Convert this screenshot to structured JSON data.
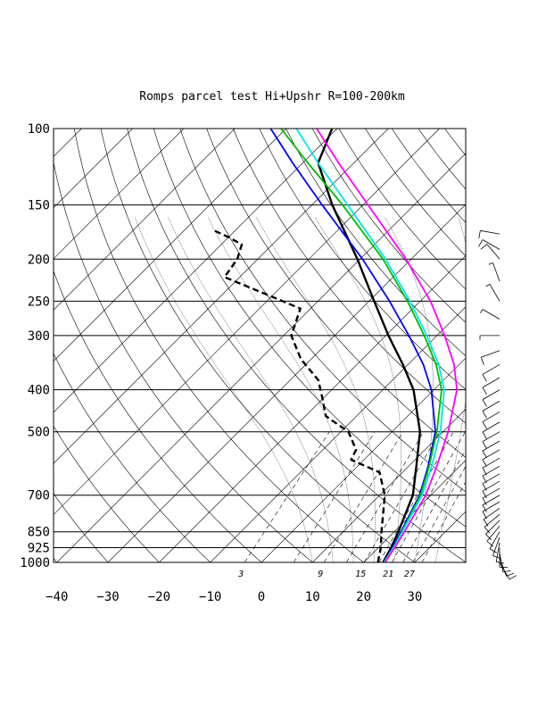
{
  "chart_data": {
    "type": "line",
    "chart_kind": "skew-T log-P diagram",
    "title": "Romps parcel test Hi+Upshr R=100-200km",
    "y_scale": "log",
    "ylim": [
      1000,
      100
    ],
    "xlim": [
      -40,
      40
    ],
    "grid": true,
    "pressure_ticks": [
      {
        "value": 100,
        "label": "100"
      },
      {
        "value": 150,
        "label": "150"
      },
      {
        "value": 200,
        "label": "200"
      },
      {
        "value": 250,
        "label": "250"
      },
      {
        "value": 300,
        "label": "300"
      },
      {
        "value": 400,
        "label": "400"
      },
      {
        "value": 500,
        "label": "500"
      },
      {
        "value": 700,
        "label": "700"
      },
      {
        "value": 850,
        "label": "850"
      },
      {
        "value": 925,
        "label": "925"
      },
      {
        "value": 1000,
        "label": "1000"
      }
    ],
    "temperature_ticks": [
      {
        "value": -40,
        "label": "−40"
      },
      {
        "value": -30,
        "label": "−30"
      },
      {
        "value": -20,
        "label": "−20"
      },
      {
        "value": -10,
        "label": "−10"
      },
      {
        "value": 0,
        "label": "0"
      },
      {
        "value": 10,
        "label": "10"
      },
      {
        "value": 20,
        "label": "20"
      },
      {
        "value": 30,
        "label": "30"
      }
    ],
    "mixing_ratio_labels": [
      {
        "value": 3,
        "label": "3"
      },
      {
        "value": 9,
        "label": "9"
      },
      {
        "value": 15,
        "label": "15"
      },
      {
        "value": 21,
        "label": "21"
      },
      {
        "value": 27,
        "label": "27"
      }
    ],
    "series": [
      {
        "kind": "environment temperature",
        "color": "#000000",
        "style": "solid",
        "points": [
          {
            "p": 1000,
            "t": 23.8
          },
          {
            "p": 925,
            "t": 22.5
          },
          {
            "p": 850,
            "t": 20.8
          },
          {
            "p": 700,
            "t": 16.5
          },
          {
            "p": 600,
            "t": 11.5
          },
          {
            "p": 500,
            "t": 5.5
          },
          {
            "p": 400,
            "t": -4.0
          },
          {
            "p": 350,
            "t": -11.0
          },
          {
            "p": 300,
            "t": -19.5
          },
          {
            "p": 250,
            "t": -29.0
          },
          {
            "p": 200,
            "t": -40.5
          },
          {
            "p": 150,
            "t": -56.0
          },
          {
            "p": 120,
            "t": -67.0
          },
          {
            "p": 100,
            "t": -71.0
          }
        ]
      },
      {
        "kind": "environment dewpoint",
        "color": "#000000",
        "style": "dashed",
        "points": [
          {
            "p": 1000,
            "t": 22.8
          },
          {
            "p": 925,
            "t": 20.5
          },
          {
            "p": 850,
            "t": 17.5
          },
          {
            "p": 700,
            "t": 11.0
          },
          {
            "p": 620,
            "t": 5.5
          },
          {
            "p": 580,
            "t": -2.5
          },
          {
            "p": 550,
            "t": -3.5
          },
          {
            "p": 500,
            "t": -8.5
          },
          {
            "p": 460,
            "t": -16.0
          },
          {
            "p": 420,
            "t": -20.0
          },
          {
            "p": 380,
            "t": -24.5
          },
          {
            "p": 340,
            "t": -32.0
          },
          {
            "p": 300,
            "t": -38.5
          },
          {
            "p": 260,
            "t": -42.0
          },
          {
            "p": 240,
            "t": -52.0
          },
          {
            "p": 220,
            "t": -63.0
          },
          {
            "p": 200,
            "t": -64.0
          },
          {
            "p": 185,
            "t": -66.0
          },
          {
            "p": 178,
            "t": -70.0
          },
          {
            "p": 172,
            "t": -74.0
          }
        ]
      },
      {
        "kind": "parcel",
        "color": "#0000ff",
        "style": "solid",
        "points": [
          {
            "p": 1000,
            "t": 24.0
          },
          {
            "p": 925,
            "t": 22.8
          },
          {
            "p": 850,
            "t": 21.3
          },
          {
            "p": 700,
            "t": 17.8
          },
          {
            "p": 600,
            "t": 13.8
          },
          {
            "p": 500,
            "t": 8.5
          },
          {
            "p": 400,
            "t": -0.5
          },
          {
            "p": 350,
            "t": -7.0
          },
          {
            "p": 300,
            "t": -15.5
          },
          {
            "p": 250,
            "t": -26.0
          },
          {
            "p": 200,
            "t": -39.5
          },
          {
            "p": 150,
            "t": -58.0
          },
          {
            "p": 120,
            "t": -72.0
          },
          {
            "p": 100,
            "t": -83.0
          }
        ]
      },
      {
        "kind": "parcel",
        "color": "#00bb00",
        "style": "solid",
        "points": [
          {
            "p": 1000,
            "t": 24.0
          },
          {
            "p": 925,
            "t": 23.0
          },
          {
            "p": 850,
            "t": 21.5
          },
          {
            "p": 700,
            "t": 18.0
          },
          {
            "p": 600,
            "t": 14.0
          },
          {
            "p": 500,
            "t": 8.8
          },
          {
            "p": 400,
            "t": 1.5
          },
          {
            "p": 350,
            "t": -4.5
          },
          {
            "p": 300,
            "t": -12.5
          },
          {
            "p": 250,
            "t": -22.5
          },
          {
            "p": 200,
            "t": -35.5
          },
          {
            "p": 150,
            "t": -54.0
          },
          {
            "p": 120,
            "t": -69.0
          },
          {
            "p": 100,
            "t": -81.0
          }
        ]
      },
      {
        "kind": "parcel",
        "color": "#00e5e5",
        "style": "solid",
        "points": [
          {
            "p": 1000,
            "t": 24.0
          },
          {
            "p": 925,
            "t": 23.0
          },
          {
            "p": 850,
            "t": 21.6
          },
          {
            "p": 700,
            "t": 18.3
          },
          {
            "p": 600,
            "t": 14.5
          },
          {
            "p": 500,
            "t": 9.5
          },
          {
            "p": 400,
            "t": 2.0
          },
          {
            "p": 350,
            "t": -4.0
          },
          {
            "p": 300,
            "t": -12.0
          },
          {
            "p": 250,
            "t": -22.0
          },
          {
            "p": 200,
            "t": -35.0
          },
          {
            "p": 150,
            "t": -53.0
          },
          {
            "p": 120,
            "t": -67.0
          },
          {
            "p": 100,
            "t": -78.0
          }
        ]
      },
      {
        "kind": "parcel",
        "color": "#ff00ff",
        "style": "solid",
        "points": [
          {
            "p": 1000,
            "t": 24.2
          },
          {
            "p": 925,
            "t": 23.2
          },
          {
            "p": 850,
            "t": 22.0
          },
          {
            "p": 700,
            "t": 19.0
          },
          {
            "p": 600,
            "t": 15.5
          },
          {
            "p": 500,
            "t": 11.0
          },
          {
            "p": 400,
            "t": 4.5
          },
          {
            "p": 350,
            "t": -1.0
          },
          {
            "p": 300,
            "t": -8.5
          },
          {
            "p": 250,
            "t": -18.0
          },
          {
            "p": 200,
            "t": -31.0
          },
          {
            "p": 150,
            "t": -49.0
          },
          {
            "p": 120,
            "t": -63.0
          },
          {
            "p": 100,
            "t": -74.0
          }
        ]
      }
    ],
    "wind_barbs": [
      {
        "p": 1000,
        "speed_kt": 10,
        "dir_deg": 150
      },
      {
        "p": 975,
        "speed_kt": 10,
        "dir_deg": 160
      },
      {
        "p": 950,
        "speed_kt": 10,
        "dir_deg": 170
      },
      {
        "p": 925,
        "speed_kt": 10,
        "dir_deg": 180
      },
      {
        "p": 900,
        "speed_kt": 10,
        "dir_deg": 190
      },
      {
        "p": 875,
        "speed_kt": 10,
        "dir_deg": 200
      },
      {
        "p": 850,
        "speed_kt": 10,
        "dir_deg": 210
      },
      {
        "p": 825,
        "speed_kt": 10,
        "dir_deg": 220
      },
      {
        "p": 800,
        "speed_kt": 10,
        "dir_deg": 225
      },
      {
        "p": 775,
        "speed_kt": 10,
        "dir_deg": 230
      },
      {
        "p": 750,
        "speed_kt": 10,
        "dir_deg": 235
      },
      {
        "p": 725,
        "speed_kt": 10,
        "dir_deg": 240
      },
      {
        "p": 700,
        "speed_kt": 10,
        "dir_deg": 240
      },
      {
        "p": 675,
        "speed_kt": 10,
        "dir_deg": 240
      },
      {
        "p": 650,
        "speed_kt": 10,
        "dir_deg": 240
      },
      {
        "p": 625,
        "speed_kt": 10,
        "dir_deg": 240
      },
      {
        "p": 600,
        "speed_kt": 10,
        "dir_deg": 240
      },
      {
        "p": 575,
        "speed_kt": 10,
        "dir_deg": 240
      },
      {
        "p": 550,
        "speed_kt": 10,
        "dir_deg": 240
      },
      {
        "p": 525,
        "speed_kt": 10,
        "dir_deg": 240
      },
      {
        "p": 500,
        "speed_kt": 10,
        "dir_deg": 240
      },
      {
        "p": 475,
        "speed_kt": 10,
        "dir_deg": 240
      },
      {
        "p": 450,
        "speed_kt": 10,
        "dir_deg": 240
      },
      {
        "p": 425,
        "speed_kt": 10,
        "dir_deg": 240
      },
      {
        "p": 400,
        "speed_kt": 10,
        "dir_deg": 240
      },
      {
        "p": 375,
        "speed_kt": 10,
        "dir_deg": 240
      },
      {
        "p": 350,
        "speed_kt": 10,
        "dir_deg": 240
      },
      {
        "p": 325,
        "speed_kt": 10,
        "dir_deg": 250
      },
      {
        "p": 300,
        "speed_kt": 5,
        "dir_deg": 270
      },
      {
        "p": 275,
        "speed_kt": 5,
        "dir_deg": 300
      },
      {
        "p": 250,
        "speed_kt": 5,
        "dir_deg": 330
      },
      {
        "p": 225,
        "speed_kt": 5,
        "dir_deg": 340
      },
      {
        "p": 200,
        "speed_kt": 10,
        "dir_deg": 320
      },
      {
        "p": 190,
        "speed_kt": 10,
        "dir_deg": 300
      },
      {
        "p": 175,
        "speed_kt": 10,
        "dir_deg": 280
      }
    ]
  }
}
